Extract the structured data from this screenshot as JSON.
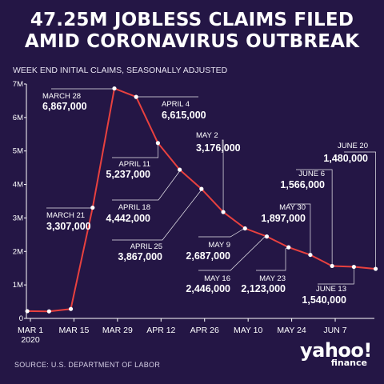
{
  "title_lines": [
    "47.25M JOBLESS CLAIMS FILED",
    "AMID CORONAVIRUS OUTBREAK"
  ],
  "subtitle": "WEEK END INITIAL CLAIMS, SEASONALLY ADJUSTED",
  "source": "SOURCE:  U.S. DEPARTMENT OF LABOR",
  "logo": {
    "word": "yahoo!",
    "sub": "finance"
  },
  "colors": {
    "background": "#241645",
    "line": "#e8413f",
    "point": "#ffffff",
    "leader": "#ffffff"
  },
  "chart_data": {
    "type": "line",
    "title": "47.25M JOBLESS CLAIMS FILED AMID CORONAVIRUS OUTBREAK",
    "ylabel": "WEEK END INITIAL CLAIMS, SEASONALLY ADJUSTED",
    "xlabel": "",
    "ylim": [
      0,
      7000000
    ],
    "y_ticks": [
      {
        "value": 0,
        "label": "0"
      },
      {
        "value": 1000000,
        "label": "1M"
      },
      {
        "value": 2000000,
        "label": "2M"
      },
      {
        "value": 3000000,
        "label": "3M"
      },
      {
        "value": 4000000,
        "label": "4M"
      },
      {
        "value": 5000000,
        "label": "5M"
      },
      {
        "value": 6000000,
        "label": "6M"
      },
      {
        "value": 7000000,
        "label": "7M"
      }
    ],
    "x_ticks": [
      {
        "date": "2020-03-01",
        "label": "MAR 1",
        "sublabel": "2020"
      },
      {
        "date": "2020-03-15",
        "label": "MAR 15"
      },
      {
        "date": "2020-03-29",
        "label": "MAR 29"
      },
      {
        "date": "2020-04-12",
        "label": "APR 12"
      },
      {
        "date": "2020-04-26",
        "label": "APR 26"
      },
      {
        "date": "2020-05-10",
        "label": "MAY 10"
      },
      {
        "date": "2020-05-24",
        "label": "MAY 24"
      },
      {
        "date": "2020-06-07",
        "label": "JUN 7"
      }
    ],
    "points": [
      {
        "date": "2020-02-29",
        "value": 217000
      },
      {
        "date": "2020-03-07",
        "value": 211000
      },
      {
        "date": "2020-03-14",
        "value": 282000
      },
      {
        "date": "2020-03-21",
        "value": 3307000,
        "label": "MARCH 21",
        "value_label": "3,307,000"
      },
      {
        "date": "2020-03-28",
        "value": 6867000,
        "label": "MARCH 28",
        "value_label": "6,867,000"
      },
      {
        "date": "2020-04-04",
        "value": 6615000,
        "label": "APRIL 4",
        "value_label": "6,615,000"
      },
      {
        "date": "2020-04-11",
        "value": 5237000,
        "label": "APRIL 11",
        "value_label": "5,237,000"
      },
      {
        "date": "2020-04-18",
        "value": 4442000,
        "label": "APRIL 18",
        "value_label": "4,442,000"
      },
      {
        "date": "2020-04-25",
        "value": 3867000,
        "label": "APRIL 25",
        "value_label": "3,867,000"
      },
      {
        "date": "2020-05-02",
        "value": 3176000,
        "label": "MAY 2",
        "value_label": "3,176,000"
      },
      {
        "date": "2020-05-09",
        "value": 2687000,
        "label": "MAY 9",
        "value_label": "2,687,000"
      },
      {
        "date": "2020-05-16",
        "value": 2446000,
        "label": "MAY 16",
        "value_label": "2,446,000"
      },
      {
        "date": "2020-05-23",
        "value": 2123000,
        "label": "MAY 23",
        "value_label": "2,123,000"
      },
      {
        "date": "2020-05-30",
        "value": 1897000,
        "label": "MAY 30",
        "value_label": "1,897,000"
      },
      {
        "date": "2020-06-06",
        "value": 1566000,
        "label": "JUNE 6",
        "value_label": "1,566,000"
      },
      {
        "date": "2020-06-13",
        "value": 1540000,
        "label": "JUNE 13",
        "value_label": "1,540,000"
      },
      {
        "date": "2020-06-20",
        "value": 1480000,
        "label": "JUNE 20",
        "value_label": "1,480,000"
      }
    ],
    "grid": false,
    "legend": "none"
  }
}
